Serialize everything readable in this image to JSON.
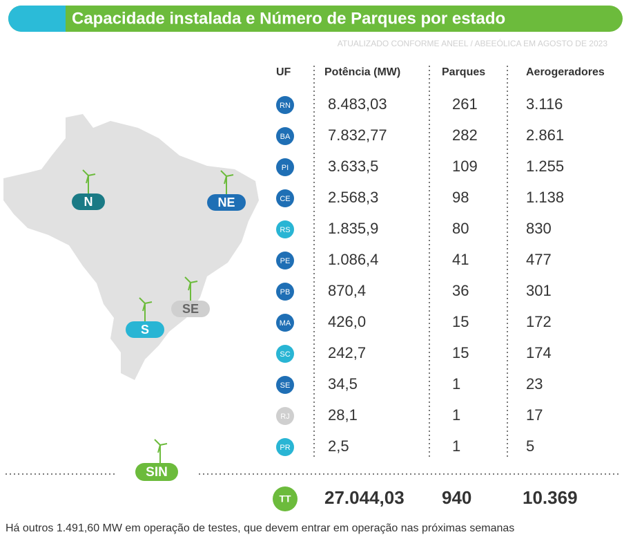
{
  "header": {
    "title": "Capacidade instalada e Número de Parques por estado",
    "subtitle": "ATUALIZADO CONFORME ANEEL / ABEEÓLICA EM AGOSTO DE 2023"
  },
  "table": {
    "columns": [
      "UF",
      "Potência (MW)",
      "Parques",
      "Aerogeradores"
    ],
    "rows": [
      [
        "RN",
        "8.483,03",
        "261",
        "3.116"
      ],
      [
        "BA",
        "7.832,77",
        "282",
        "2.861"
      ],
      [
        "PI",
        "3.633,5",
        "109",
        "1.255"
      ],
      [
        "CE",
        "2.568,3",
        "98",
        "1.138"
      ],
      [
        "RS",
        "1.835,9",
        "80",
        "830"
      ],
      [
        "PE",
        "1.086,4",
        "41",
        "477"
      ],
      [
        "PB",
        "870,4",
        "36",
        "301"
      ],
      [
        "MA",
        "426,0",
        "15",
        "172"
      ],
      [
        "SC",
        "242,7",
        "15",
        "174"
      ],
      [
        "SE",
        "34,5",
        "1",
        "23"
      ],
      [
        "RJ",
        "28,1",
        "1",
        "17"
      ],
      [
        "PR",
        "2,5",
        "1",
        "5"
      ]
    ],
    "badge_colors": [
      "#1f6fb5",
      "#1f6fb5",
      "#1f6fb5",
      "#1f6fb5",
      "#29b5d4",
      "#1f6fb5",
      "#1f6fb5",
      "#1f6fb5",
      "#29b5d4",
      "#1f6fb5",
      "#cfcfcf",
      "#29b5d4"
    ],
    "total": [
      "TT",
      "27.044,03",
      "940",
      "10.369"
    ]
  },
  "map": {
    "regions": [
      {
        "label": "N",
        "color": "#1a7a85"
      },
      {
        "label": "NE",
        "color": "#1f6fb5"
      },
      {
        "label": "SE",
        "color": "#cfcfcf"
      },
      {
        "label": "S",
        "color": "#29b5d4"
      }
    ],
    "sin": "SIN"
  },
  "footnote": "Há outros 1.491,60 MW em operação de testes, que devem entrar em operação nas próximas semanas"
}
